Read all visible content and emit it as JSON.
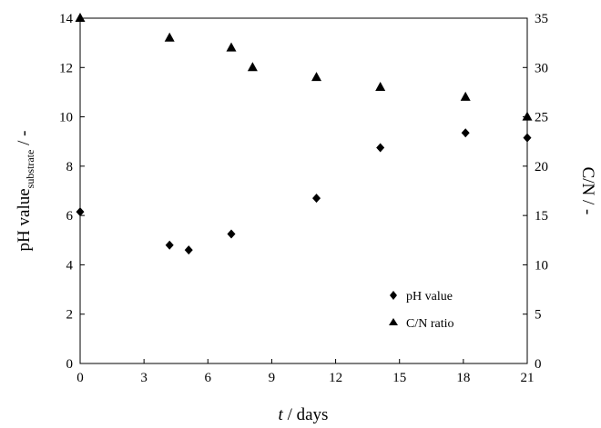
{
  "chart_data": {
    "type": "scatter",
    "title": "",
    "x_axis": {
      "label_italic": "t",
      "label_rest": " / days",
      "range": [
        0,
        21
      ],
      "ticks": [
        0,
        3,
        6,
        9,
        12,
        15,
        18,
        21
      ]
    },
    "y_axis_left": {
      "label_main": "pH value",
      "label_sub": "substrate",
      "label_suffix": " / -",
      "range": [
        0,
        14
      ],
      "ticks": [
        0,
        2,
        4,
        6,
        8,
        10,
        12,
        14
      ]
    },
    "y_axis_right": {
      "label": "C/N  / -",
      "range": [
        0,
        35
      ],
      "ticks": [
        0,
        5,
        10,
        15,
        20,
        25,
        30,
        35
      ]
    },
    "legend_position": "bottom-right",
    "grid": false,
    "series": [
      {
        "name": "pH value",
        "marker": "diamond",
        "axis": "left",
        "color": "#000000",
        "x": [
          0,
          4.2,
          5.1,
          7.1,
          11.1,
          14.1,
          18.1,
          21
        ],
        "y": [
          6.15,
          4.8,
          4.6,
          5.25,
          6.7,
          8.75,
          9.35,
          9.15
        ]
      },
      {
        "name": "C/N ratio",
        "marker": "triangle",
        "axis": "right",
        "color": "#000000",
        "x": [
          0,
          4.2,
          7.1,
          8.1,
          11.1,
          14.1,
          18.1,
          21
        ],
        "y": [
          35,
          33,
          32,
          30,
          29,
          28,
          27,
          25
        ]
      }
    ]
  }
}
